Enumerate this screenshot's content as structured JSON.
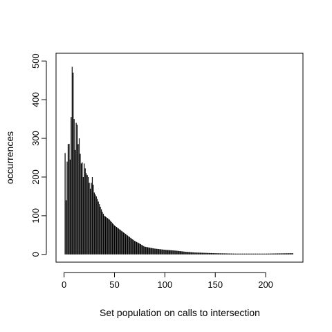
{
  "chart_data": {
    "type": "bar",
    "style": "histogram-spikes",
    "title": "",
    "xlabel": "Set population on calls to intersection",
    "ylabel": "occurrences",
    "xlim": [
      -8,
      237
    ],
    "ylim": [
      -20,
      520
    ],
    "x_ticks": [
      0,
      50,
      100,
      150,
      200
    ],
    "y_ticks": [
      0,
      100,
      200,
      300,
      400,
      500
    ],
    "bar_color": "#000000",
    "grid": false,
    "legend": "none",
    "anchors": [
      [
        1,
        262
      ],
      [
        2,
        140
      ],
      [
        3,
        240
      ],
      [
        4,
        285
      ],
      [
        5,
        286
      ],
      [
        6,
        245
      ],
      [
        7,
        355
      ],
      [
        8,
        485
      ],
      [
        9,
        470
      ],
      [
        10,
        350
      ],
      [
        11,
        270
      ],
      [
        12,
        340
      ],
      [
        13,
        335
      ],
      [
        14,
        285
      ],
      [
        15,
        300
      ],
      [
        16,
        260
      ],
      [
        17,
        235
      ],
      [
        18,
        238
      ],
      [
        19,
        200
      ],
      [
        20,
        235
      ],
      [
        22,
        210
      ],
      [
        24,
        200
      ],
      [
        26,
        170
      ],
      [
        28,
        200
      ],
      [
        30,
        160
      ],
      [
        32,
        150
      ],
      [
        35,
        130
      ],
      [
        38,
        110
      ],
      [
        40,
        100
      ],
      [
        45,
        90
      ],
      [
        50,
        75
      ],
      [
        55,
        65
      ],
      [
        60,
        55
      ],
      [
        65,
        45
      ],
      [
        70,
        35
      ],
      [
        75,
        28
      ],
      [
        80,
        20
      ],
      [
        90,
        15
      ],
      [
        100,
        12
      ],
      [
        110,
        10
      ],
      [
        120,
        7
      ],
      [
        130,
        5
      ],
      [
        140,
        4
      ],
      [
        150,
        3
      ],
      [
        170,
        2
      ],
      [
        200,
        2
      ],
      [
        225,
        3
      ],
      [
        227,
        3
      ]
    ]
  }
}
